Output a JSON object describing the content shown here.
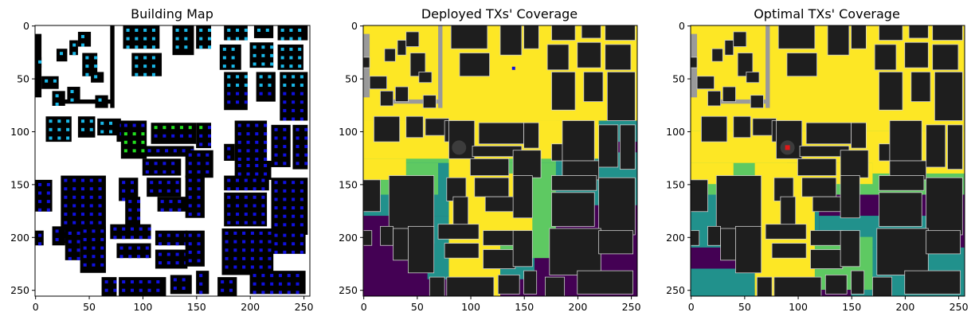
{
  "figure": {
    "panels": [
      {
        "id": "building",
        "title": "Building Map"
      },
      {
        "id": "deployed",
        "title": "Deployed TXs' Coverage"
      },
      {
        "id": "optimal",
        "title": "Optimal TXs' Coverage"
      }
    ]
  },
  "chart_data": {
    "type": "heatmap",
    "layout": "1x3 image subplots",
    "xlim": [
      0,
      255
    ],
    "ylim": [
      255,
      0
    ],
    "xticks": [
      "0",
      "50",
      "100",
      "150",
      "200",
      "250"
    ],
    "yticks": [
      "0",
      "50",
      "100",
      "150",
      "200",
      "250"
    ],
    "panels": [
      {
        "title": "Building Map",
        "description_values": {
          "marker_colors": [
            "#1010e0",
            "#19b8e8",
            "#22e01e"
          ]
        },
        "background": "#ffffff",
        "building_color": "#000000"
      },
      {
        "title": "Deployed TXs' Coverage",
        "colormap": "viridis (4 levels)",
        "levels": [
          "#440154",
          "#21918c",
          "#5ec962",
          "#fde725"
        ],
        "building_color": "#1e1e1e",
        "tx_markers": [
          {
            "x": 89,
            "y": 115,
            "shape": "dark circle"
          },
          {
            "x": 140,
            "y": 40,
            "shape": "blue point"
          }
        ]
      },
      {
        "title": "Optimal TXs' Coverage",
        "colormap": "viridis (4 levels)",
        "levels": [
          "#440154",
          "#21918c",
          "#5ec962",
          "#fde725"
        ],
        "building_color": "#1e1e1e",
        "tx_markers": [
          {
            "x": 90,
            "y": 115,
            "shape": "red square"
          }
        ]
      }
    ]
  }
}
